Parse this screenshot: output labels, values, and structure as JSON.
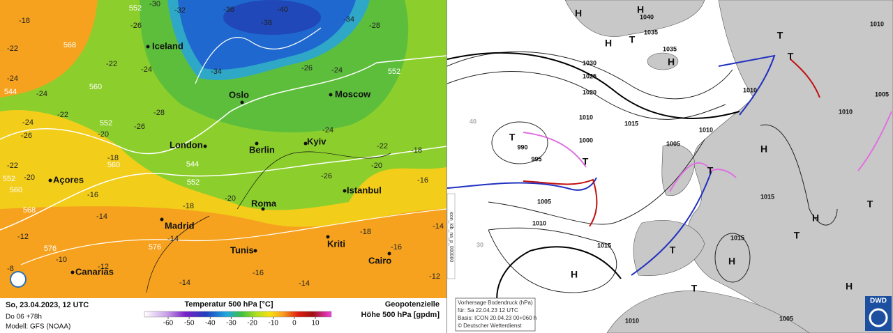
{
  "left_map": {
    "cities": [
      "Iceland",
      "Oslo",
      "Moscow",
      "London",
      "Berlin",
      "Kyiv",
      "Açores",
      "Istanbul",
      "Roma",
      "Madrid",
      "Tunis",
      "Kriti",
      "Canarias",
      "Cairo"
    ],
    "temperature_labels": [
      -18,
      -30,
      -32,
      -36,
      -40,
      -34,
      -38,
      -26,
      -28,
      -22,
      -24,
      -34,
      -26,
      -24,
      -22,
      -24,
      -24,
      -22,
      -26,
      -28,
      -24,
      -26,
      -20,
      -18,
      -22,
      -20,
      -24,
      -26,
      -22,
      -18,
      -20,
      -16,
      -16,
      -14,
      -12,
      -10,
      -12,
      -8,
      -14,
      -14,
      -16,
      -14,
      -18,
      -14,
      -16,
      -12,
      -18,
      -20
    ],
    "height_labels": [
      552,
      568,
      560,
      544,
      552,
      560,
      552,
      560,
      568,
      576,
      576,
      552,
      544,
      552
    ],
    "footer": {
      "date": "So, 23.04.2023, 12 UTC",
      "lead": "Do 06 +78h",
      "model": "Modell: GFS (NOAA)",
      "legend_title": "Temperatur 500 hPa [°C]",
      "legend_ticks": [
        -60,
        -50,
        -40,
        -30,
        -20,
        -10,
        0,
        10
      ],
      "geo_line1": "Geopotenzielle",
      "geo_line2": "Höhe 500 hPa [gpdm]"
    }
  },
  "right_map": {
    "pressure_labels": [
      "1040",
      "1035",
      "1035",
      "1030",
      "1025",
      "1020",
      "1010",
      "1015",
      "1010",
      "1005",
      "990",
      "995",
      "1000",
      "1010",
      "1010",
      "1005",
      "1010",
      "1005",
      "1010",
      "1015",
      "1015",
      "1015",
      "1010",
      "1005"
    ],
    "highs": [
      "H",
      "H",
      "H",
      "H",
      "H",
      "H",
      "H",
      "H",
      "H"
    ],
    "lows": [
      "T",
      "T",
      "T",
      "T",
      "T",
      "T",
      "T",
      "T",
      "T",
      "T"
    ],
    "faint_labels": [
      "40",
      "30"
    ],
    "info_box": [
      "Vorhersage Bodendruck (hPa)",
      "für:  Sa  22.04.23  12 UTC",
      "Basis: ICON  20.04.23 00+060 h",
      "© Deutscher Wetterdienst"
    ],
    "side_text": "icon_klb_na_p_000060",
    "logo": "DWD"
  }
}
